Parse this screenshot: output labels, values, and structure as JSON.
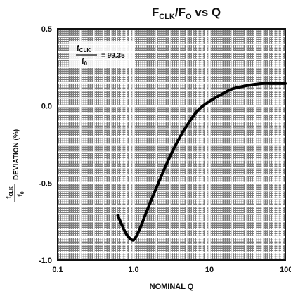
{
  "chart_data": {
    "type": "line",
    "title": {
      "main": "F",
      "sub1": "CLK",
      "mid": "/F",
      "sub2": "O",
      "tail": " vs Q"
    },
    "xlabel": "NOMINAL Q",
    "ylabel": {
      "frac_num": "f",
      "frac_num_sub": "CLK",
      "frac_den": "f",
      "frac_den_sub": "0",
      "text": "DEVIATION (%)"
    },
    "x_scale": "log",
    "xlim": [
      0.1,
      100
    ],
    "ylim": [
      -1.0,
      0.5
    ],
    "x_ticks": [
      {
        "value": 0.1,
        "label": "0.1"
      },
      {
        "value": 1,
        "label": "1.0"
      },
      {
        "value": 10,
        "label": "10"
      },
      {
        "value": 100,
        "label": "100"
      }
    ],
    "y_ticks": [
      {
        "value": 0.5,
        "label": "0.5"
      },
      {
        "value": 0.0,
        "label": "0.0"
      },
      {
        "value": -0.5,
        "label": "-0.5"
      },
      {
        "value": -1.0,
        "label": "-1.0"
      }
    ],
    "grid": true,
    "annotation": {
      "num": "f",
      "num_sub": "CLK",
      "den": "f",
      "den_sub": "0",
      "value": "= 99.35"
    },
    "series": [
      {
        "x": [
          0.62,
          0.7,
          0.8,
          0.9,
          1.0,
          1.1,
          1.25,
          1.5,
          2,
          3,
          4,
          5,
          7,
          10,
          15,
          20,
          30,
          40,
          50,
          70,
          100
        ],
        "y": [
          -0.71,
          -0.77,
          -0.83,
          -0.86,
          -0.87,
          -0.84,
          -0.78,
          -0.68,
          -0.53,
          -0.33,
          -0.21,
          -0.13,
          -0.03,
          0.03,
          0.08,
          0.11,
          0.13,
          0.14,
          0.145,
          0.145,
          0.145
        ]
      }
    ]
  }
}
